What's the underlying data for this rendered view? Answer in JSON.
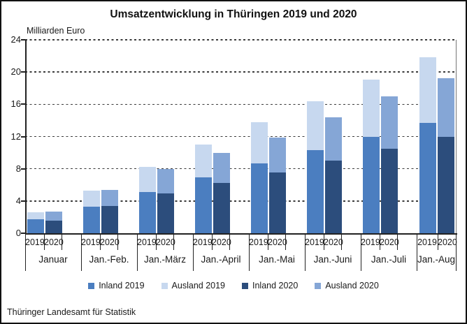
{
  "page": {
    "source": "Thüringer Landesamt für Statistik"
  },
  "chart_data": {
    "type": "bar",
    "stacked": true,
    "title": "Umsatzentwicklung in Thüringen 2019 und 2020",
    "ylabel": "Milliarden Euro",
    "ylim": [
      0,
      24
    ],
    "yticks": [
      0,
      4,
      8,
      12,
      16,
      20,
      24
    ],
    "grid": "horizontal-dashed",
    "legend_position": "bottom",
    "categories": [
      "Januar",
      "Jan.-Feb.",
      "Jan.-März",
      "Jan.-April",
      "Jan.-Mai",
      "Jan.-Juni",
      "Jan.-Juli",
      "Jan.-Aug"
    ],
    "bar_years": [
      "2019",
      "2020"
    ],
    "series": [
      {
        "name": "Inland 2019",
        "year": "2019",
        "part": "inland",
        "color": "#4b7ec0",
        "values": [
          1.7,
          3.3,
          5.1,
          6.9,
          8.7,
          10.3,
          12.0,
          13.7
        ]
      },
      {
        "name": "Ausland 2019",
        "year": "2019",
        "part": "ausland",
        "color": "#c7d8ef",
        "values": [
          0.9,
          2.0,
          3.1,
          4.1,
          5.1,
          6.1,
          7.1,
          8.1
        ]
      },
      {
        "name": "Inland 2020",
        "year": "2020",
        "part": "inland",
        "color": "#2c4d7c",
        "values": [
          1.6,
          3.4,
          4.9,
          6.2,
          7.5,
          9.0,
          10.5,
          12.0
        ]
      },
      {
        "name": "Ausland 2020",
        "year": "2020",
        "part": "ausland",
        "color": "#85a6d6",
        "values": [
          1.1,
          2.0,
          3.1,
          3.8,
          4.4,
          5.4,
          6.5,
          7.2
        ]
      }
    ],
    "totals_2019": [
      2.6,
      5.3,
      8.2,
      11.0,
      13.8,
      16.4,
      19.1,
      21.8
    ],
    "totals_2020": [
      2.7,
      5.4,
      8.0,
      10.0,
      11.9,
      14.4,
      17.0,
      19.2
    ]
  }
}
